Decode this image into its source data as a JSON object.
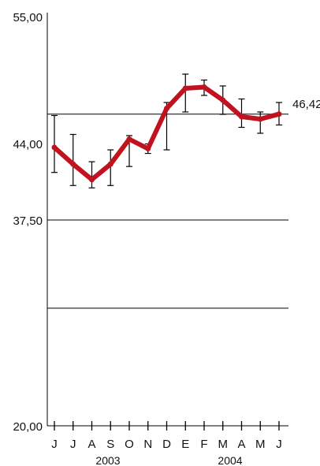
{
  "chart_data": {
    "type": "line",
    "x": [
      "J",
      "J",
      "A",
      "S",
      "O",
      "N",
      "D",
      "E",
      "F",
      "M",
      "A",
      "M",
      "J"
    ],
    "years": [
      "2003",
      "2004"
    ],
    "series": [
      {
        "values": [
          43.6,
          42.2,
          40.9,
          42.2,
          44.3,
          43.5,
          46.9,
          48.6,
          48.7,
          47.6,
          46.2,
          46.0,
          46.42
        ],
        "error_low": [
          41.5,
          40.4,
          40.2,
          40.4,
          42.0,
          43.1,
          43.4,
          46.6,
          48.0,
          46.4,
          45.3,
          44.8,
          45.5
        ],
        "error_high": [
          46.3,
          44.7,
          42.4,
          43.4,
          44.6,
          43.9,
          47.4,
          49.8,
          49.3,
          48.8,
          47.7,
          46.6,
          47.4
        ]
      }
    ],
    "last_value_label": "46,42",
    "y_ticks": [
      "55,00",
      "44,00",
      "37,50",
      "20,00"
    ],
    "ylim": [
      20,
      55
    ],
    "grid": "horizontal",
    "line_color": "#c1121f"
  }
}
